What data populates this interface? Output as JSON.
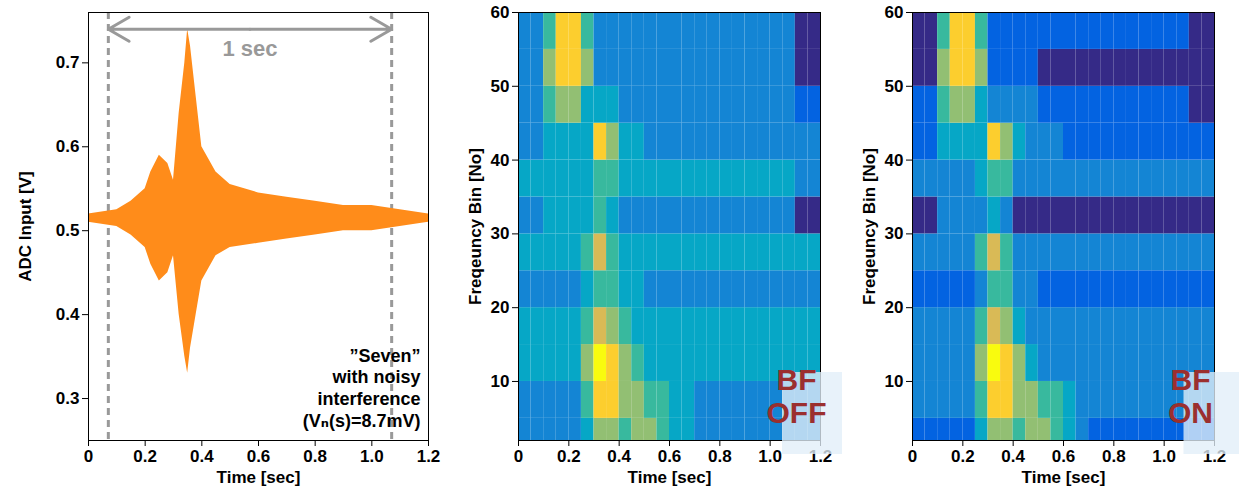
{
  "chart_data": [
    {
      "type": "area",
      "xlabel": "Time [sec]",
      "ylabel": "ADC Input [V]",
      "xlim": [
        0,
        1.2
      ],
      "ylim": [
        0.25,
        0.76
      ],
      "xticks": [
        0,
        0.2,
        0.4,
        0.6,
        0.8,
        {
          "value": 1,
          "label": "1.0"
        },
        1.2
      ],
      "yticks": [
        0.3,
        0.4,
        0.5,
        0.6,
        0.7
      ],
      "color": "#ff8c1a",
      "x": [
        0,
        0.1,
        0.15,
        0.2,
        0.22,
        0.25,
        0.28,
        0.3,
        0.32,
        0.34,
        0.35,
        0.36,
        0.38,
        0.4,
        0.45,
        0.5,
        0.6,
        0.7,
        0.8,
        0.9,
        1.0,
        1.1,
        1.2
      ],
      "upper": [
        0.52,
        0.525,
        0.535,
        0.55,
        0.57,
        0.59,
        0.58,
        0.56,
        0.64,
        0.7,
        0.74,
        0.72,
        0.66,
        0.6,
        0.57,
        0.555,
        0.545,
        0.54,
        0.535,
        0.53,
        0.53,
        0.525,
        0.52
      ],
      "lower": [
        0.51,
        0.505,
        0.495,
        0.48,
        0.46,
        0.44,
        0.45,
        0.47,
        0.4,
        0.35,
        0.33,
        0.36,
        0.4,
        0.44,
        0.47,
        0.48,
        0.485,
        0.49,
        0.495,
        0.5,
        0.5,
        0.505,
        0.51
      ],
      "annotations": [
        {
          "text": "1 sec",
          "x_start": 0.07,
          "x_end": 1.07,
          "y": 0.74
        },
        {
          "text": "”Seven”\nwith noisy\ninterference\n(Vₙ(s)=8.7mV)"
        }
      ]
    },
    {
      "type": "heatmap",
      "label": "BF\nOFF",
      "xlabel": "Time [sec]",
      "ylabel": "Freqeuncy Bin [No]",
      "xlim": [
        0,
        1.2
      ],
      "ylim": [
        2,
        60
      ],
      "xticks": [
        0,
        0.2,
        0.4,
        0.6,
        0.8,
        {
          "value": 1,
          "label": "1.0"
        },
        1.2
      ],
      "yticks": [
        10,
        20,
        30,
        40,
        50,
        60
      ],
      "time_edges": [
        0,
        0.05,
        0.1,
        0.15,
        0.2,
        0.25,
        0.3,
        0.35,
        0.4,
        0.45,
        0.5,
        0.55,
        0.6,
        0.65,
        0.7,
        0.75,
        0.8,
        0.85,
        0.9,
        0.95,
        1.0,
        1.05,
        1.1,
        1.15,
        1.2
      ],
      "bin_edges": [
        0,
        5,
        10,
        15,
        20,
        25,
        30,
        35,
        40,
        45,
        50,
        55,
        60
      ],
      "cells": [
        [
          3,
          3,
          3,
          3,
          3,
          4,
          6,
          6,
          5,
          6,
          6,
          5,
          4,
          4,
          3,
          3,
          3,
          3,
          3,
          3,
          3,
          3,
          3,
          3
        ],
        [
          3,
          3,
          3,
          3,
          3,
          5,
          8,
          8,
          6,
          6,
          5,
          5,
          4,
          4,
          3,
          3,
          3,
          3,
          3,
          3,
          3,
          3,
          3,
          3
        ],
        [
          4,
          4,
          4,
          4,
          4,
          6,
          9,
          8,
          6,
          5,
          4,
          4,
          4,
          4,
          4,
          4,
          4,
          4,
          4,
          4,
          4,
          4,
          4,
          4
        ],
        [
          4,
          4,
          4,
          4,
          4,
          5,
          7,
          6,
          5,
          4,
          4,
          4,
          4,
          4,
          4,
          4,
          4,
          4,
          4,
          4,
          4,
          4,
          4,
          4
        ],
        [
          3,
          3,
          3,
          3,
          3,
          4,
          5,
          5,
          4,
          4,
          3,
          3,
          3,
          3,
          3,
          3,
          3,
          3,
          3,
          3,
          3,
          3,
          3,
          3
        ],
        [
          4,
          4,
          4,
          4,
          4,
          5,
          7,
          5,
          4,
          4,
          4,
          4,
          4,
          4,
          4,
          4,
          4,
          4,
          4,
          4,
          4,
          4,
          4,
          4
        ],
        [
          3,
          3,
          4,
          4,
          4,
          4,
          5,
          4,
          3,
          3,
          3,
          3,
          3,
          3,
          3,
          3,
          3,
          3,
          3,
          3,
          3,
          3,
          1,
          1
        ],
        [
          4,
          4,
          4,
          4,
          4,
          4,
          5,
          5,
          4,
          4,
          4,
          4,
          4,
          4,
          4,
          4,
          4,
          4,
          4,
          4,
          4,
          4,
          3,
          3
        ],
        [
          3,
          3,
          4,
          4,
          4,
          4,
          8,
          6,
          4,
          4,
          3,
          3,
          3,
          3,
          3,
          3,
          3,
          3,
          3,
          3,
          3,
          3,
          3,
          3
        ],
        [
          3,
          3,
          5,
          6,
          6,
          4,
          4,
          4,
          3,
          3,
          3,
          3,
          3,
          3,
          3,
          3,
          3,
          3,
          3,
          3,
          3,
          3,
          2,
          2
        ],
        [
          3,
          3,
          6,
          8,
          8,
          6,
          3,
          3,
          3,
          3,
          3,
          3,
          3,
          3,
          3,
          3,
          3,
          3,
          3,
          3,
          3,
          3,
          1,
          1
        ],
        [
          3,
          3,
          5,
          8,
          8,
          5,
          3,
          3,
          3,
          3,
          3,
          3,
          3,
          3,
          3,
          3,
          3,
          3,
          3,
          3,
          3,
          3,
          1,
          1
        ]
      ]
    },
    {
      "type": "heatmap",
      "label": "BF\nON",
      "xlabel": "Time [sec]",
      "ylabel": "Freqeuncy Bin [No]",
      "xlim": [
        0,
        1.2
      ],
      "ylim": [
        2,
        60
      ],
      "xticks": [
        0,
        0.2,
        0.4,
        0.6,
        0.8,
        {
          "value": 1,
          "label": "1.0"
        },
        1.2
      ],
      "yticks": [
        10,
        20,
        30,
        40,
        50,
        60
      ],
      "time_edges": [
        0,
        0.05,
        0.1,
        0.15,
        0.2,
        0.25,
        0.3,
        0.35,
        0.4,
        0.45,
        0.5,
        0.55,
        0.6,
        0.65,
        0.7,
        0.75,
        0.8,
        0.85,
        0.9,
        0.95,
        1.0,
        1.05,
        1.1,
        1.15,
        1.2
      ],
      "bin_edges": [
        0,
        5,
        10,
        15,
        20,
        25,
        30,
        35,
        40,
        45,
        50,
        55,
        60
      ],
      "cells": [
        [
          2,
          2,
          2,
          2,
          2,
          4,
          6,
          6,
          5,
          6,
          6,
          5,
          4,
          3,
          2,
          2,
          2,
          2,
          2,
          2,
          2,
          2,
          2,
          2
        ],
        [
          3,
          3,
          3,
          3,
          3,
          5,
          8,
          8,
          6,
          6,
          5,
          5,
          4,
          3,
          3,
          3,
          3,
          3,
          3,
          3,
          3,
          3,
          3,
          3
        ],
        [
          3,
          3,
          3,
          3,
          3,
          6,
          9,
          8,
          6,
          4,
          3,
          3,
          3,
          3,
          3,
          3,
          3,
          3,
          3,
          3,
          3,
          3,
          3,
          3
        ],
        [
          3,
          3,
          3,
          3,
          3,
          5,
          7,
          6,
          4,
          3,
          3,
          3,
          3,
          3,
          3,
          3,
          3,
          3,
          3,
          3,
          3,
          3,
          3,
          3
        ],
        [
          2,
          2,
          2,
          2,
          2,
          3,
          5,
          5,
          3,
          3,
          2,
          2,
          2,
          2,
          2,
          2,
          2,
          2,
          2,
          2,
          2,
          2,
          2,
          2
        ],
        [
          3,
          3,
          3,
          3,
          3,
          5,
          7,
          5,
          3,
          3,
          3,
          3,
          3,
          3,
          3,
          3,
          3,
          3,
          3,
          3,
          3,
          3,
          3,
          3
        ],
        [
          1,
          1,
          3,
          3,
          3,
          3,
          4,
          3,
          1,
          1,
          1,
          1,
          1,
          1,
          1,
          1,
          1,
          1,
          1,
          1,
          1,
          1,
          1,
          1
        ],
        [
          3,
          3,
          3,
          3,
          3,
          4,
          5,
          5,
          3,
          3,
          3,
          3,
          3,
          3,
          3,
          3,
          3,
          3,
          3,
          3,
          3,
          3,
          3,
          3
        ],
        [
          2,
          2,
          4,
          4,
          4,
          4,
          8,
          6,
          4,
          3,
          3,
          3,
          2,
          2,
          2,
          2,
          2,
          2,
          2,
          2,
          2,
          2,
          2,
          2
        ],
        [
          2,
          2,
          5,
          6,
          6,
          4,
          3,
          3,
          3,
          3,
          2,
          2,
          2,
          2,
          2,
          2,
          2,
          2,
          2,
          2,
          2,
          2,
          1,
          1
        ],
        [
          1,
          1,
          6,
          8,
          8,
          6,
          2,
          2,
          2,
          2,
          1,
          1,
          1,
          1,
          1,
          1,
          1,
          1,
          1,
          1,
          1,
          1,
          1,
          1
        ],
        [
          1,
          1,
          5,
          8,
          8,
          5,
          2,
          2,
          2,
          2,
          2,
          2,
          2,
          2,
          2,
          2,
          2,
          2,
          2,
          2,
          2,
          2,
          1,
          1
        ]
      ]
    }
  ]
}
